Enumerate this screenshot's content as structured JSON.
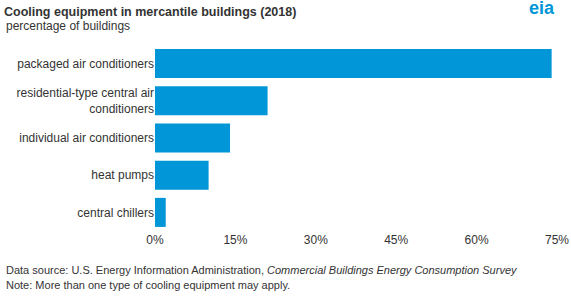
{
  "chart_data": {
    "type": "bar",
    "orientation": "horizontal",
    "title": "Cooling equipment in mercantile buildings (2018)",
    "subtitle": "percentage of buildings",
    "logo": "eia",
    "categories": [
      "packaged air conditioners",
      "residential-type central air conditioners",
      "individual air conditioners",
      "heat pumps",
      "central chillers"
    ],
    "values": [
      74,
      21,
      14,
      10,
      2
    ],
    "color": "#0096d7",
    "xlim": [
      0,
      75
    ],
    "xticks": [
      {
        "value": 0,
        "label": "0%"
      },
      {
        "value": 15,
        "label": "15%"
      },
      {
        "value": 30,
        "label": "30%"
      },
      {
        "value": 45,
        "label": "45%"
      },
      {
        "value": 60,
        "label": "60%"
      },
      {
        "value": 75,
        "label": "75%"
      }
    ],
    "grid": false,
    "source": [
      "Data source: U.S. Energy Information Administration, ",
      "Commercial Buildings Energy Consumption Survey"
    ],
    "note": "Note: More than one type of cooling equipment may apply."
  }
}
